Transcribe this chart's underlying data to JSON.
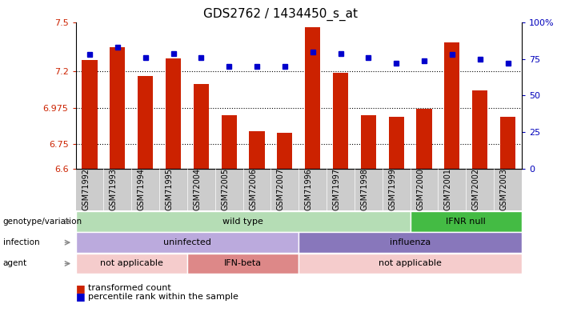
{
  "title": "GDS2762 / 1434450_s_at",
  "samples": [
    "GSM71992",
    "GSM71993",
    "GSM71994",
    "GSM71995",
    "GSM72004",
    "GSM72005",
    "GSM72006",
    "GSM72007",
    "GSM71996",
    "GSM71997",
    "GSM71998",
    "GSM71999",
    "GSM72000",
    "GSM72001",
    "GSM72002",
    "GSM72003"
  ],
  "bar_values": [
    7.27,
    7.35,
    7.17,
    7.28,
    7.12,
    6.93,
    6.83,
    6.82,
    7.47,
    7.19,
    6.93,
    6.92,
    6.97,
    7.38,
    7.08,
    6.92
  ],
  "dot_values": [
    78,
    83,
    76,
    79,
    76,
    70,
    70,
    70,
    80,
    79,
    76,
    72,
    74,
    78,
    75,
    72
  ],
  "bar_color": "#cc2200",
  "dot_color": "#0000cc",
  "ylim_left": [
    6.6,
    7.5
  ],
  "ylim_right": [
    0,
    100
  ],
  "yticks_left": [
    6.6,
    6.75,
    6.975,
    7.2,
    7.5
  ],
  "yticks_right": [
    0,
    25,
    50,
    75,
    100
  ],
  "ytick_labels_left": [
    "6.6",
    "6.75",
    "6.975",
    "7.2",
    "7.5"
  ],
  "ytick_labels_right": [
    "0",
    "25",
    "50",
    "75",
    "100%"
  ],
  "hlines": [
    7.2,
    6.975,
    6.75
  ],
  "genotype_blocks": [
    {
      "label": "wild type",
      "start": 0,
      "end": 12,
      "color": "#b5ddb5"
    },
    {
      "label": "IFNR null",
      "start": 12,
      "end": 16,
      "color": "#44bb44"
    }
  ],
  "infection_blocks": [
    {
      "label": "uninfected",
      "start": 0,
      "end": 8,
      "color": "#bbaadd"
    },
    {
      "label": "influenza",
      "start": 8,
      "end": 16,
      "color": "#8877bb"
    }
  ],
  "agent_blocks": [
    {
      "label": "not applicable",
      "start": 0,
      "end": 4,
      "color": "#f5cccc"
    },
    {
      "label": "IFN-beta",
      "start": 4,
      "end": 8,
      "color": "#dd8888"
    },
    {
      "label": "not applicable",
      "start": 8,
      "end": 16,
      "color": "#f5cccc"
    }
  ],
  "row_labels": [
    "genotype/variation",
    "infection",
    "agent"
  ],
  "row_keys": [
    "genotype_blocks",
    "infection_blocks",
    "agent_blocks"
  ],
  "bar_color_hex": "#cc2200",
  "dot_color_hex": "#0000cc",
  "label_color_left": "#cc2200",
  "label_color_right": "#0000bb",
  "xticklabel_bg": "#cccccc",
  "plot_bg": "#ffffff",
  "legend_labels": [
    "transformed count",
    "percentile rank within the sample"
  ]
}
